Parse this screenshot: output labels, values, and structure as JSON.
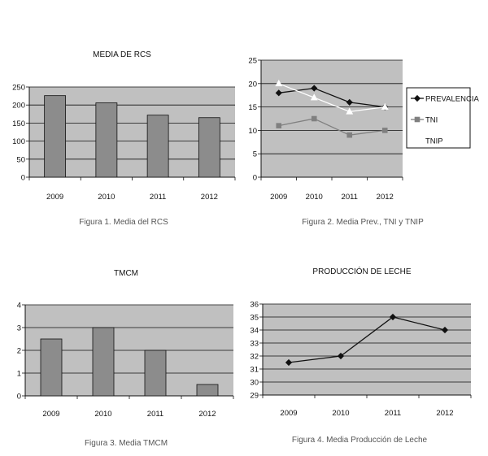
{
  "chart_data": [
    {
      "type": "bar",
      "title": "MEDIA DE RCS",
      "caption": "Figura 1. Media del RCS",
      "categories": [
        "2009",
        "2010",
        "2011",
        "2012"
      ],
      "values": [
        226,
        206,
        172,
        165
      ],
      "ylim": [
        0,
        250
      ],
      "yticks": [
        0,
        50,
        100,
        150,
        200,
        250
      ],
      "grid": true
    },
    {
      "type": "line",
      "title": "",
      "caption": "Figura 2. Media Prev., TNI y TNIP",
      "categories": [
        "2009",
        "2010",
        "2011",
        "2012"
      ],
      "ylim": [
        0,
        25
      ],
      "yticks": [
        0,
        5,
        10,
        15,
        20,
        25
      ],
      "grid": true,
      "legend": "right",
      "series": [
        {
          "name": "PREVALENCIA",
          "values": [
            18,
            19,
            16,
            15
          ],
          "color": "#111111",
          "marker": "diamond"
        },
        {
          "name": "TNI",
          "values": [
            11,
            12.5,
            9,
            10
          ],
          "color": "#808080",
          "marker": "square"
        },
        {
          "name": "TNIP",
          "values": [
            20,
            17,
            14,
            15
          ],
          "color": "#ffffff",
          "marker": "triangle"
        }
      ]
    },
    {
      "type": "bar",
      "title": "TMCM",
      "caption": "Figura 3. Media TMCM",
      "categories": [
        "2009",
        "2010",
        "2011",
        "2012"
      ],
      "values": [
        2.5,
        3,
        2,
        0.5
      ],
      "ylim": [
        0,
        4
      ],
      "yticks": [
        0,
        1,
        2,
        3,
        4
      ],
      "grid": true
    },
    {
      "type": "line",
      "title": "PRODUCCIÓN DE LECHE",
      "caption": "Figura 4. Media Producción de Leche",
      "categories": [
        "2009",
        "2010",
        "2011",
        "2012"
      ],
      "ylim": [
        29,
        36
      ],
      "yticks": [
        29,
        30,
        31,
        32,
        33,
        34,
        35,
        36
      ],
      "grid": true,
      "series": [
        {
          "values": [
            31.5,
            32,
            35,
            34
          ],
          "color": "#111111",
          "marker": "diamond"
        }
      ]
    }
  ],
  "colors": {
    "plot_background": "#c0c0c0",
    "bar_fill": "#8c8c8c",
    "grid_line": "#111111",
    "axis": "#111111"
  }
}
